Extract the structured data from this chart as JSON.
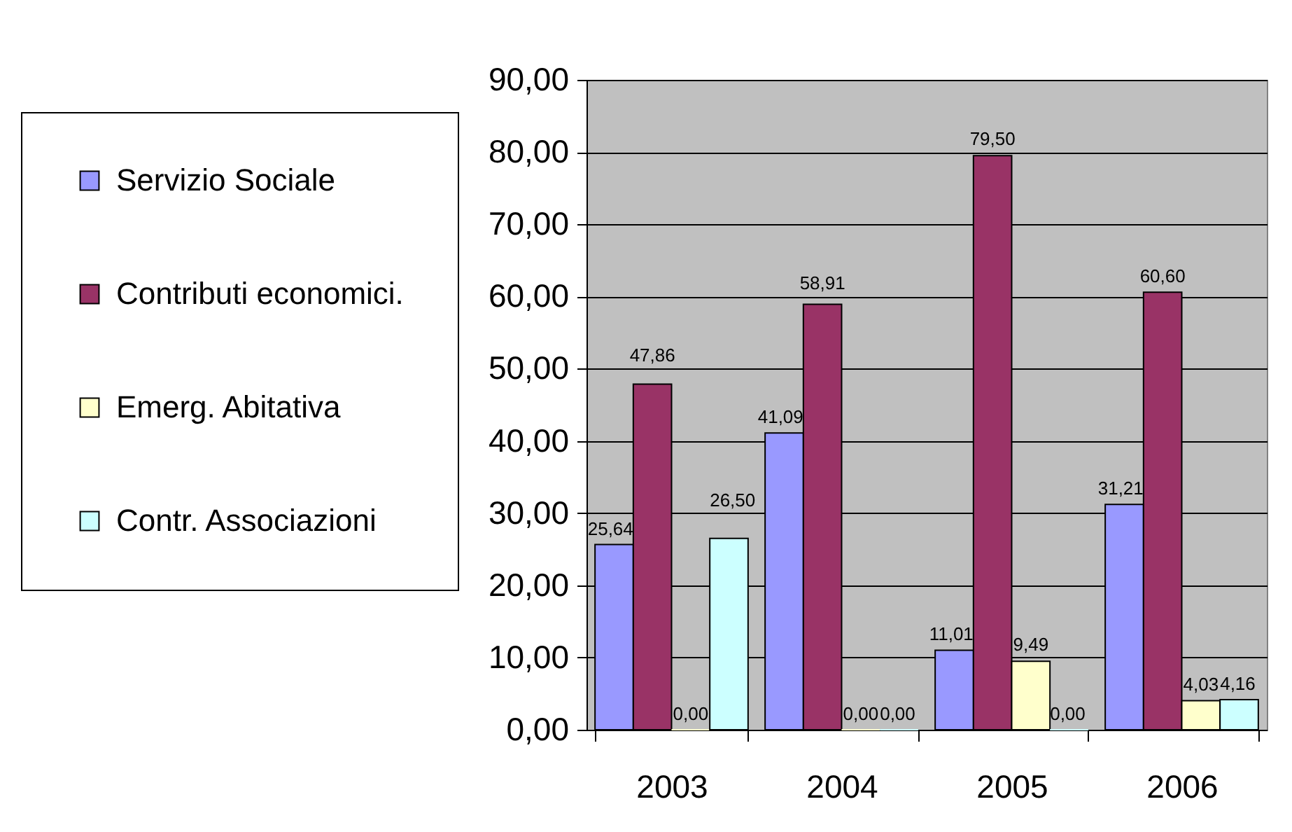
{
  "chart_data": {
    "type": "bar",
    "categories": [
      "2003",
      "2004",
      "2005",
      "2006"
    ],
    "series": [
      {
        "name": "Servizio Sociale",
        "color": "#9999ff",
        "values": [
          25.64,
          41.09,
          11.01,
          31.21
        ],
        "value_labels": [
          "25,64",
          "41,09",
          "11,01",
          "31,21"
        ]
      },
      {
        "name": "Contributi economici.",
        "color": "#993366",
        "values": [
          47.86,
          58.91,
          79.5,
          60.6
        ],
        "value_labels": [
          "47,86",
          "58,91",
          "79,50",
          "60,60"
        ]
      },
      {
        "name": "Emerg. Abitativa",
        "color": "#ffffcc",
        "values": [
          0,
          0,
          9.49,
          4.03
        ],
        "value_labels": [
          "0,00",
          "0,00",
          "9,49",
          "4,03"
        ]
      },
      {
        "name": "Contr. Associazioni",
        "color": "#ccffff",
        "values": [
          26.5,
          0,
          0,
          4.16
        ],
        "value_labels": [
          "26,50",
          "0,00",
          "0,00",
          "4,16"
        ]
      }
    ],
    "ylim": [
      0,
      90
    ],
    "yticks": [
      {
        "value": 0,
        "label": "0,00"
      },
      {
        "value": 10,
        "label": "10,00"
      },
      {
        "value": 20,
        "label": "20,00"
      },
      {
        "value": 30,
        "label": "30,00"
      },
      {
        "value": 40,
        "label": "40,00"
      },
      {
        "value": 50,
        "label": "50,00"
      },
      {
        "value": 60,
        "label": "60,00"
      },
      {
        "value": 70,
        "label": "70,00"
      },
      {
        "value": 80,
        "label": "80,00"
      },
      {
        "value": 90,
        "label": "90,00"
      }
    ],
    "grid": "y",
    "legend": "left"
  }
}
